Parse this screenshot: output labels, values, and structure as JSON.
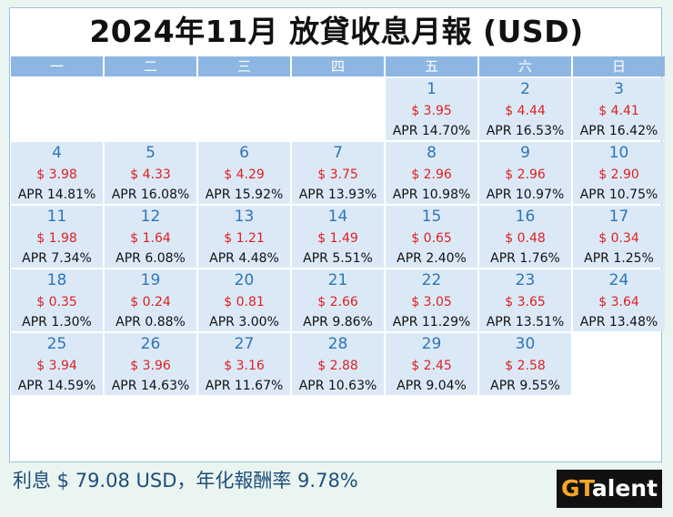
{
  "title": "2024年11月 放貸收息月報 (USD)",
  "weekdays": [
    "一",
    "二",
    "三",
    "四",
    "五",
    "六",
    "日"
  ],
  "weeks": [
    [
      null,
      null,
      null,
      null,
      {
        "day": "1",
        "amount": "$ 3.95",
        "apr": "APR 14.70%"
      },
      {
        "day": "2",
        "amount": "$ 4.44",
        "apr": "APR 16.53%"
      },
      {
        "day": "3",
        "amount": "$ 4.41",
        "apr": "APR 16.42%"
      }
    ],
    [
      {
        "day": "4",
        "amount": "$ 3.98",
        "apr": "APR 14.81%"
      },
      {
        "day": "5",
        "amount": "$ 4.33",
        "apr": "APR 16.08%"
      },
      {
        "day": "6",
        "amount": "$ 4.29",
        "apr": "APR 15.92%"
      },
      {
        "day": "7",
        "amount": "$ 3.75",
        "apr": "APR 13.93%"
      },
      {
        "day": "8",
        "amount": "$ 2.96",
        "apr": "APR 10.98%"
      },
      {
        "day": "9",
        "amount": "$ 2.96",
        "apr": "APR 10.97%"
      },
      {
        "day": "10",
        "amount": "$ 2.90",
        "apr": "APR 10.75%"
      }
    ],
    [
      {
        "day": "11",
        "amount": "$ 1.98",
        "apr": "APR 7.34%"
      },
      {
        "day": "12",
        "amount": "$ 1.64",
        "apr": "APR 6.08%"
      },
      {
        "day": "13",
        "amount": "$ 1.21",
        "apr": "APR 4.48%"
      },
      {
        "day": "14",
        "amount": "$ 1.49",
        "apr": "APR 5.51%"
      },
      {
        "day": "15",
        "amount": "$ 0.65",
        "apr": "APR 2.40%"
      },
      {
        "day": "16",
        "amount": "$ 0.48",
        "apr": "APR 1.76%"
      },
      {
        "day": "17",
        "amount": "$ 0.34",
        "apr": "APR 1.25%"
      }
    ],
    [
      {
        "day": "18",
        "amount": "$ 0.35",
        "apr": "APR 1.30%"
      },
      {
        "day": "19",
        "amount": "$ 0.24",
        "apr": "APR 0.88%"
      },
      {
        "day": "20",
        "amount": "$ 0.81",
        "apr": "APR 3.00%"
      },
      {
        "day": "21",
        "amount": "$ 2.66",
        "apr": "APR 9.86%"
      },
      {
        "day": "22",
        "amount": "$ 3.05",
        "apr": "APR 11.29%"
      },
      {
        "day": "23",
        "amount": "$ 3.65",
        "apr": "APR 13.51%"
      },
      {
        "day": "24",
        "amount": "$ 3.64",
        "apr": "APR 13.48%"
      }
    ],
    [
      {
        "day": "25",
        "amount": "$ 3.94",
        "apr": "APR 14.59%"
      },
      {
        "day": "26",
        "amount": "$ 3.96",
        "apr": "APR 14.63%"
      },
      {
        "day": "27",
        "amount": "$ 3.16",
        "apr": "APR 11.67%"
      },
      {
        "day": "28",
        "amount": "$ 2.88",
        "apr": "APR 10.63%"
      },
      {
        "day": "29",
        "amount": "$ 2.45",
        "apr": "APR 9.04%"
      },
      {
        "day": "30",
        "amount": "$ 2.58",
        "apr": "APR 9.55%"
      },
      null
    ]
  ],
  "footer": "利息 $ 79.08 USD，年化報酬率 9.78%",
  "logo": {
    "highlight": "GT",
    "rest": "alent"
  }
}
